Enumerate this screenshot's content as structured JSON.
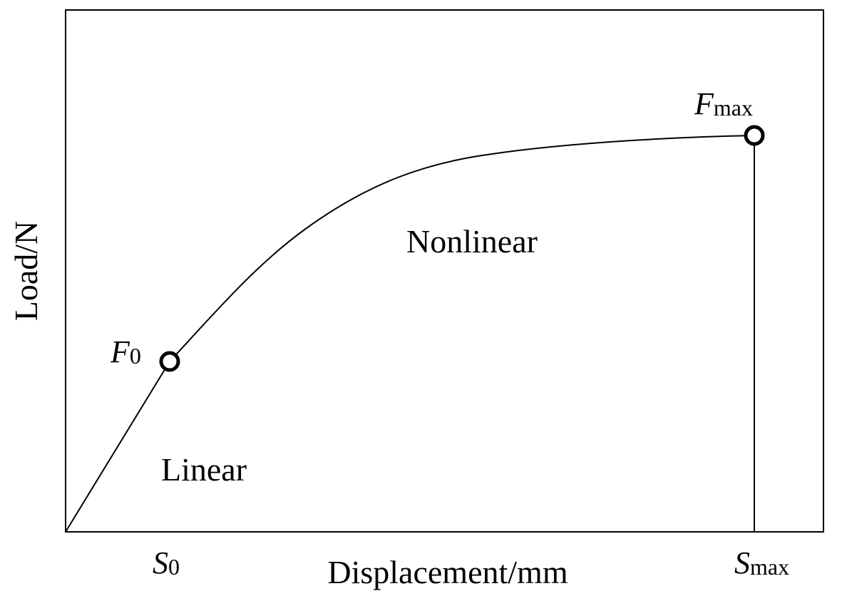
{
  "axes": {
    "y_label": "Load/N",
    "x_label": "Displacement/mm"
  },
  "regions": {
    "linear": "Linear",
    "nonlinear": "Nonlinear"
  },
  "points": {
    "f0": {
      "symbol": "F",
      "subscript": "0"
    },
    "fmax": {
      "symbol": "F",
      "subscript": "max"
    }
  },
  "x_marks": {
    "s0": {
      "symbol": "S",
      "subscript": "0"
    },
    "smax": {
      "symbol": "S",
      "subscript": "max"
    }
  }
}
